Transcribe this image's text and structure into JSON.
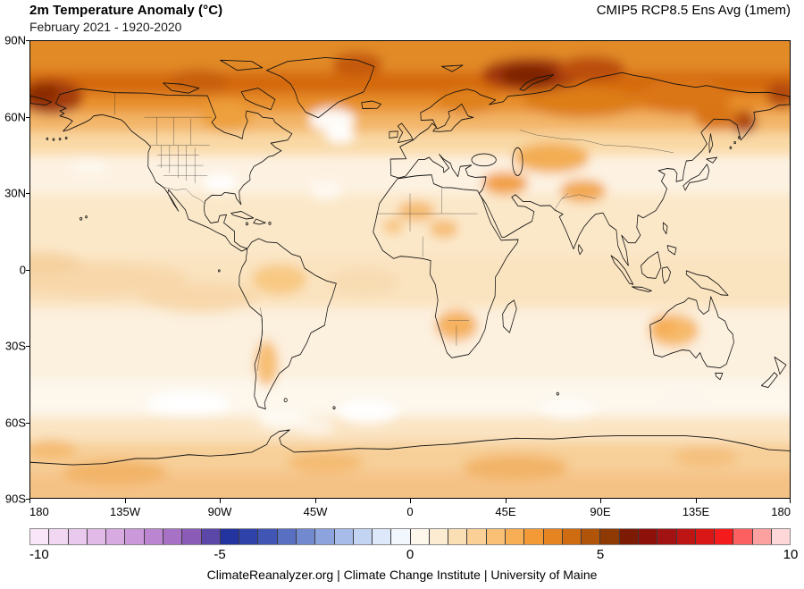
{
  "header": {
    "title": "2m Temperature Anomaly (°C)",
    "subtitle": "February 2021 - 1920-2020",
    "model_label": "CMIP5 RCP8.5 Ens Avg (1mem)"
  },
  "map": {
    "lat_labels": [
      "90N",
      "60N",
      "30N",
      "0",
      "30S",
      "60S",
      "90S"
    ],
    "lon_labels": [
      "180",
      "135W",
      "90W",
      "45W",
      "0",
      "45E",
      "90E",
      "135E",
      "180"
    ]
  },
  "colorbar": {
    "min": -10,
    "max": 10,
    "unit": "°C",
    "tick_labels": [
      "-10",
      "-5",
      "0",
      "5",
      "10"
    ],
    "colors": [
      "#f9e6f9",
      "#f2d7f3",
      "#eac9ee",
      "#e1bae8",
      "#d7aae2",
      "#cb98da",
      "#bb85d1",
      "#a771c6",
      "#8a5cb8",
      "#5a47a8",
      "#2333a0",
      "#2e42a9",
      "#4156b4",
      "#586fc2",
      "#7289d0",
      "#8da3de",
      "#a8bcea",
      "#c3d4f3",
      "#dde8fa",
      "#f2f7fd",
      "#fdf7ec",
      "#fcecd2",
      "#fbdfb4",
      "#fad096",
      "#f9c076",
      "#f7ae55",
      "#f39a36",
      "#e58420",
      "#cf6c12",
      "#b05409",
      "#8f3a05",
      "#7d1a04",
      "#8e100a",
      "#a31212",
      "#bd1414",
      "#d91717",
      "#f31b1b",
      "#fc6060",
      "#fda0a0",
      "#fed8d8"
    ]
  },
  "palette": {
    "hotspot_dark": "#7a2204",
    "arctic_orange": "#d4690f",
    "ocean_base": "#fcecd4",
    "cool_white": "#ffffff"
  },
  "footer": {
    "credit": "ClimateReanalyzer.org | Climate Change Institute | University of Maine"
  }
}
